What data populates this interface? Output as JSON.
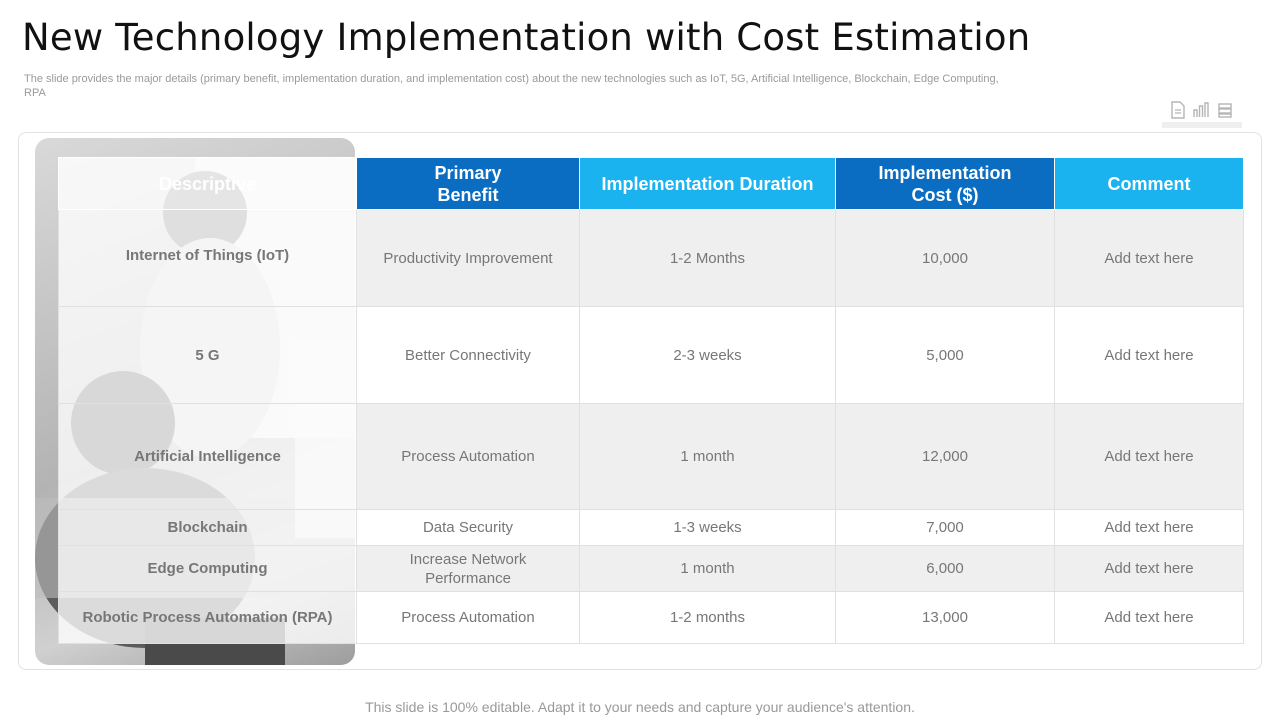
{
  "header": {
    "title": "New Technology Implementation with Cost Estimation",
    "subtitle": "The slide provides the major details (primary benefit, implementation duration, and implementation cost) about the new technologies such as IoT, 5G, Artificial Intelligence, Blockchain, Edge Computing, RPA"
  },
  "toolbar": {
    "icons": [
      "document-icon",
      "chart-icon",
      "stack-icon"
    ]
  },
  "table": {
    "columns": [
      "Descriptive",
      "Primary Benefit",
      "Implementation Duration",
      "Implementation Cost ($)",
      "Comment"
    ],
    "rows": [
      {
        "name": "Internet of Things (IoT)",
        "benefit": "Productivity Improvement",
        "duration": "1-2 Months",
        "cost": "10,000",
        "comment": "Add text here"
      },
      {
        "name": "5 G",
        "benefit": "Better Connectivity",
        "duration": "2-3 weeks",
        "cost": "5,000",
        "comment": "Add text here"
      },
      {
        "name": "Artificial Intelligence",
        "benefit": "Process Automation",
        "duration": "1 month",
        "cost": "12,000",
        "comment": "Add text here"
      },
      {
        "name": "Blockchain",
        "benefit": "Data Security",
        "duration": "1-3 weeks",
        "cost": "7,000",
        "comment": "Add text here"
      },
      {
        "name": "Edge Computing",
        "benefit": "Increase Network Performance",
        "duration": "1 month",
        "cost": "6,000",
        "comment": "Add text here"
      },
      {
        "name": "Robotic Process Automation (RPA)",
        "benefit": "Process Automation",
        "duration": "1-2 months",
        "cost": "13,000",
        "comment": "Add text here"
      }
    ]
  },
  "footer": {
    "text": "This slide is 100% editable. Adapt it to your needs and capture your audience's attention."
  },
  "colors": {
    "header_dark": "#0a6dc2",
    "header_light": "#1ab3f0",
    "row_shade": "#efefef"
  }
}
